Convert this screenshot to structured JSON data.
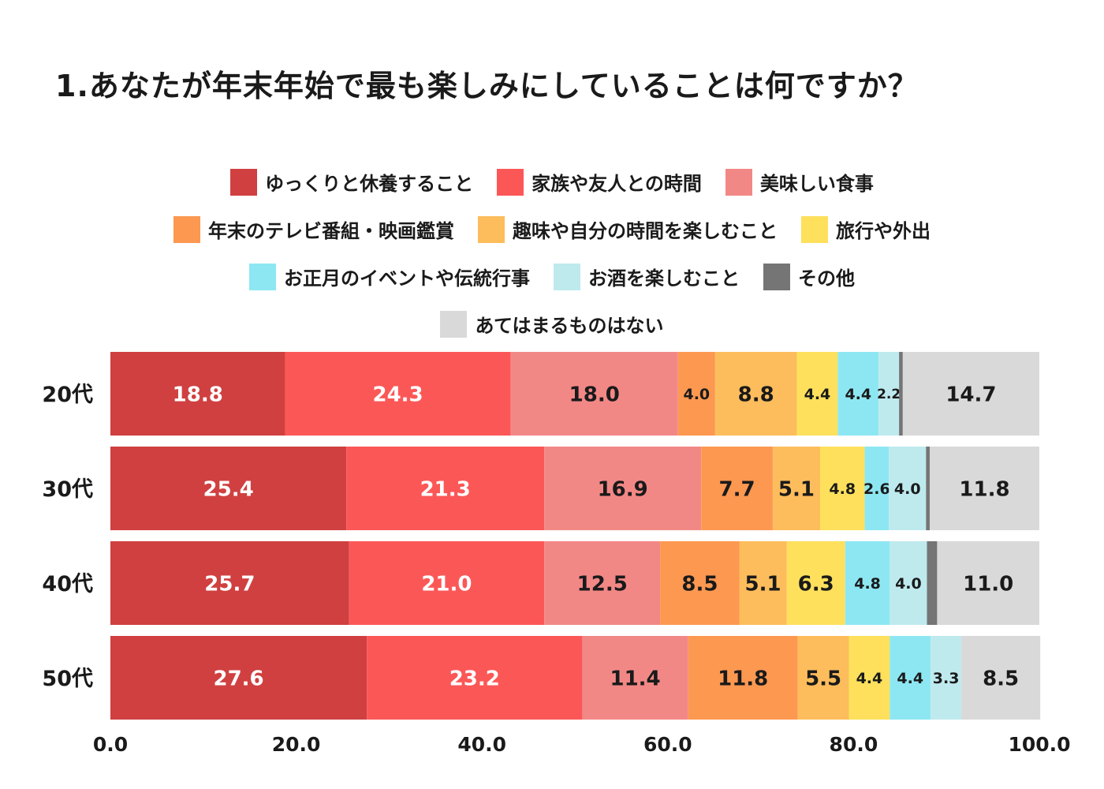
{
  "chart_data": {
    "type": "bar",
    "orientation": "horizontal",
    "stacked": true,
    "title": "1.あなたが年末年始で最も楽しみにしていることは何ですか？",
    "categories": [
      "20代",
      "30代",
      "40代",
      "50代"
    ],
    "series": [
      {
        "name": "ゆっくりと休養すること",
        "color": "#D04040",
        "label_color": "#ffffff",
        "values": [
          18.8,
          25.4,
          25.7,
          27.6
        ]
      },
      {
        "name": "家族や友人との時間",
        "color": "#FC5757",
        "label_color": "#ffffff",
        "values": [
          24.3,
          21.3,
          21.0,
          23.2
        ]
      },
      {
        "name": "美味しい食事",
        "color": "#F28886",
        "label_color": "#1a1a1a",
        "values": [
          18.0,
          16.9,
          12.5,
          11.4
        ]
      },
      {
        "name": "年末のテレビ番組・映画鑑賞",
        "color": "#FD9851",
        "label_color": "#1a1a1a",
        "values": [
          4.0,
          7.7,
          8.5,
          11.8
        ]
      },
      {
        "name": "趣味や自分の時間を楽しむこと",
        "color": "#FDBD5C",
        "label_color": "#1a1a1a",
        "values": [
          8.8,
          5.1,
          5.1,
          5.5
        ]
      },
      {
        "name": "旅行や外出",
        "color": "#FEE05C",
        "label_color": "#1a1a1a",
        "values": [
          4.4,
          4.8,
          6.3,
          4.4
        ]
      },
      {
        "name": "お正月のイベントや伝統行事",
        "color": "#8DE7F3",
        "label_color": "#1a1a1a",
        "values": [
          4.4,
          2.6,
          4.8,
          4.4
        ]
      },
      {
        "name": "お酒を楽しむこと",
        "color": "#BEEAEE",
        "label_color": "#1a1a1a",
        "values": [
          2.2,
          4.0,
          4.0,
          3.3
        ]
      },
      {
        "name": "その他",
        "color": "#757575",
        "label_color": "#1a1a1a",
        "values": [
          0.4,
          0.4,
          1.1,
          0.0
        ]
      },
      {
        "name": "あてはまるものはない",
        "color": "#D9D9D9",
        "label_color": "#1a1a1a",
        "values": [
          14.7,
          11.8,
          11.0,
          8.5
        ]
      }
    ],
    "value_labels": [
      [
        "18.8",
        "24.3",
        "18.0",
        "4.0",
        "8.8",
        "4.4",
        "4.4",
        "2.2",
        "",
        "14.7"
      ],
      [
        "25.4",
        "21.3",
        "16.9",
        "7.7",
        "5.1",
        "4.8",
        "2.6",
        "4.0",
        "",
        "11.8"
      ],
      [
        "25.7",
        "21.0",
        "12.5",
        "8.5",
        "5.1",
        "6.3",
        "4.8",
        "4.0",
        "",
        "11.0"
      ],
      [
        "27.6",
        "23.2",
        "11.4",
        "11.8",
        "5.5",
        "4.4",
        "4.4",
        "3.3",
        "",
        "8.5"
      ]
    ],
    "xlim": [
      0,
      100
    ],
    "x_ticks": [
      "0.0",
      "20.0",
      "40.0",
      "60.0",
      "80.0",
      "100.0"
    ],
    "grid": false,
    "legend_position": "top-center"
  }
}
